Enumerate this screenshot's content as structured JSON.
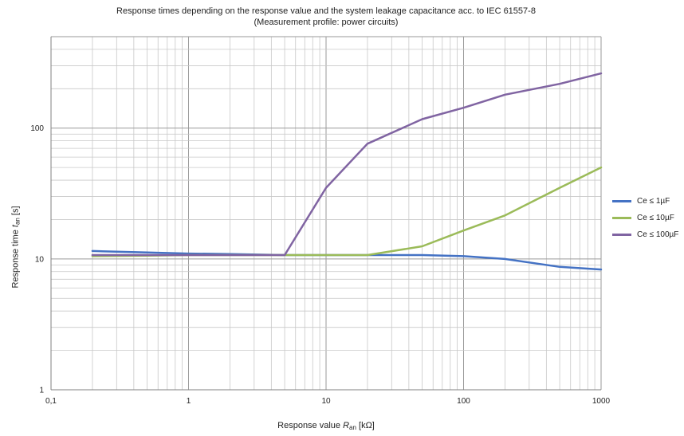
{
  "chart_data": {
    "type": "line",
    "title_line1": "Response times depending on the response value and the system leakage capacitance acc. to IEC 61557-8",
    "title_line2": "(Measurement profile: power circuits)",
    "xlabel": {
      "prefix": "Response value ",
      "var": "R",
      "sub": "an",
      "unit": " [kΩ]"
    },
    "ylabel": {
      "prefix": "Response time ",
      "var": "t",
      "sub": "an",
      "unit": " [s]"
    },
    "x_scale": "log",
    "y_scale": "log",
    "xlim": [
      0.1,
      1000
    ],
    "ylim": [
      1,
      500
    ],
    "x_ticks": [
      {
        "value": 0.1,
        "label": "0,1"
      },
      {
        "value": 1,
        "label": "1"
      },
      {
        "value": 10,
        "label": "10"
      },
      {
        "value": 100,
        "label": "100"
      },
      {
        "value": 1000,
        "label": "1000"
      }
    ],
    "y_ticks": [
      {
        "value": 1,
        "label": "1"
      },
      {
        "value": 10,
        "label": "10"
      },
      {
        "value": 100,
        "label": "100"
      }
    ],
    "grid": true,
    "legend_position": "right",
    "series": [
      {
        "name": "Ce ≤ 1µF",
        "color": "#4472C4",
        "x": [
          0.2,
          0.5,
          1,
          2,
          5,
          10,
          20,
          50,
          100,
          200,
          500,
          1000
        ],
        "y": [
          11.5,
          11.2,
          11.0,
          10.9,
          10.7,
          10.7,
          10.7,
          10.7,
          10.5,
          10.0,
          8.7,
          8.3
        ]
      },
      {
        "name": "Ce ≤ 10µF",
        "color": "#9BBB59",
        "x": [
          0.2,
          0.5,
          1,
          2,
          5,
          10,
          20,
          50,
          100,
          200,
          500,
          1000
        ],
        "y": [
          10.5,
          10.6,
          10.7,
          10.7,
          10.7,
          10.7,
          10.7,
          12.5,
          16.5,
          21.5,
          35,
          50
        ]
      },
      {
        "name": "Ce ≤ 100µF",
        "color": "#8064A2",
        "x": [
          0.2,
          0.5,
          1,
          2,
          5,
          10,
          20,
          50,
          100,
          200,
          500,
          1000
        ],
        "y": [
          10.7,
          10.7,
          10.7,
          10.7,
          10.7,
          35,
          76,
          117,
          143,
          180,
          218,
          262
        ]
      }
    ]
  }
}
